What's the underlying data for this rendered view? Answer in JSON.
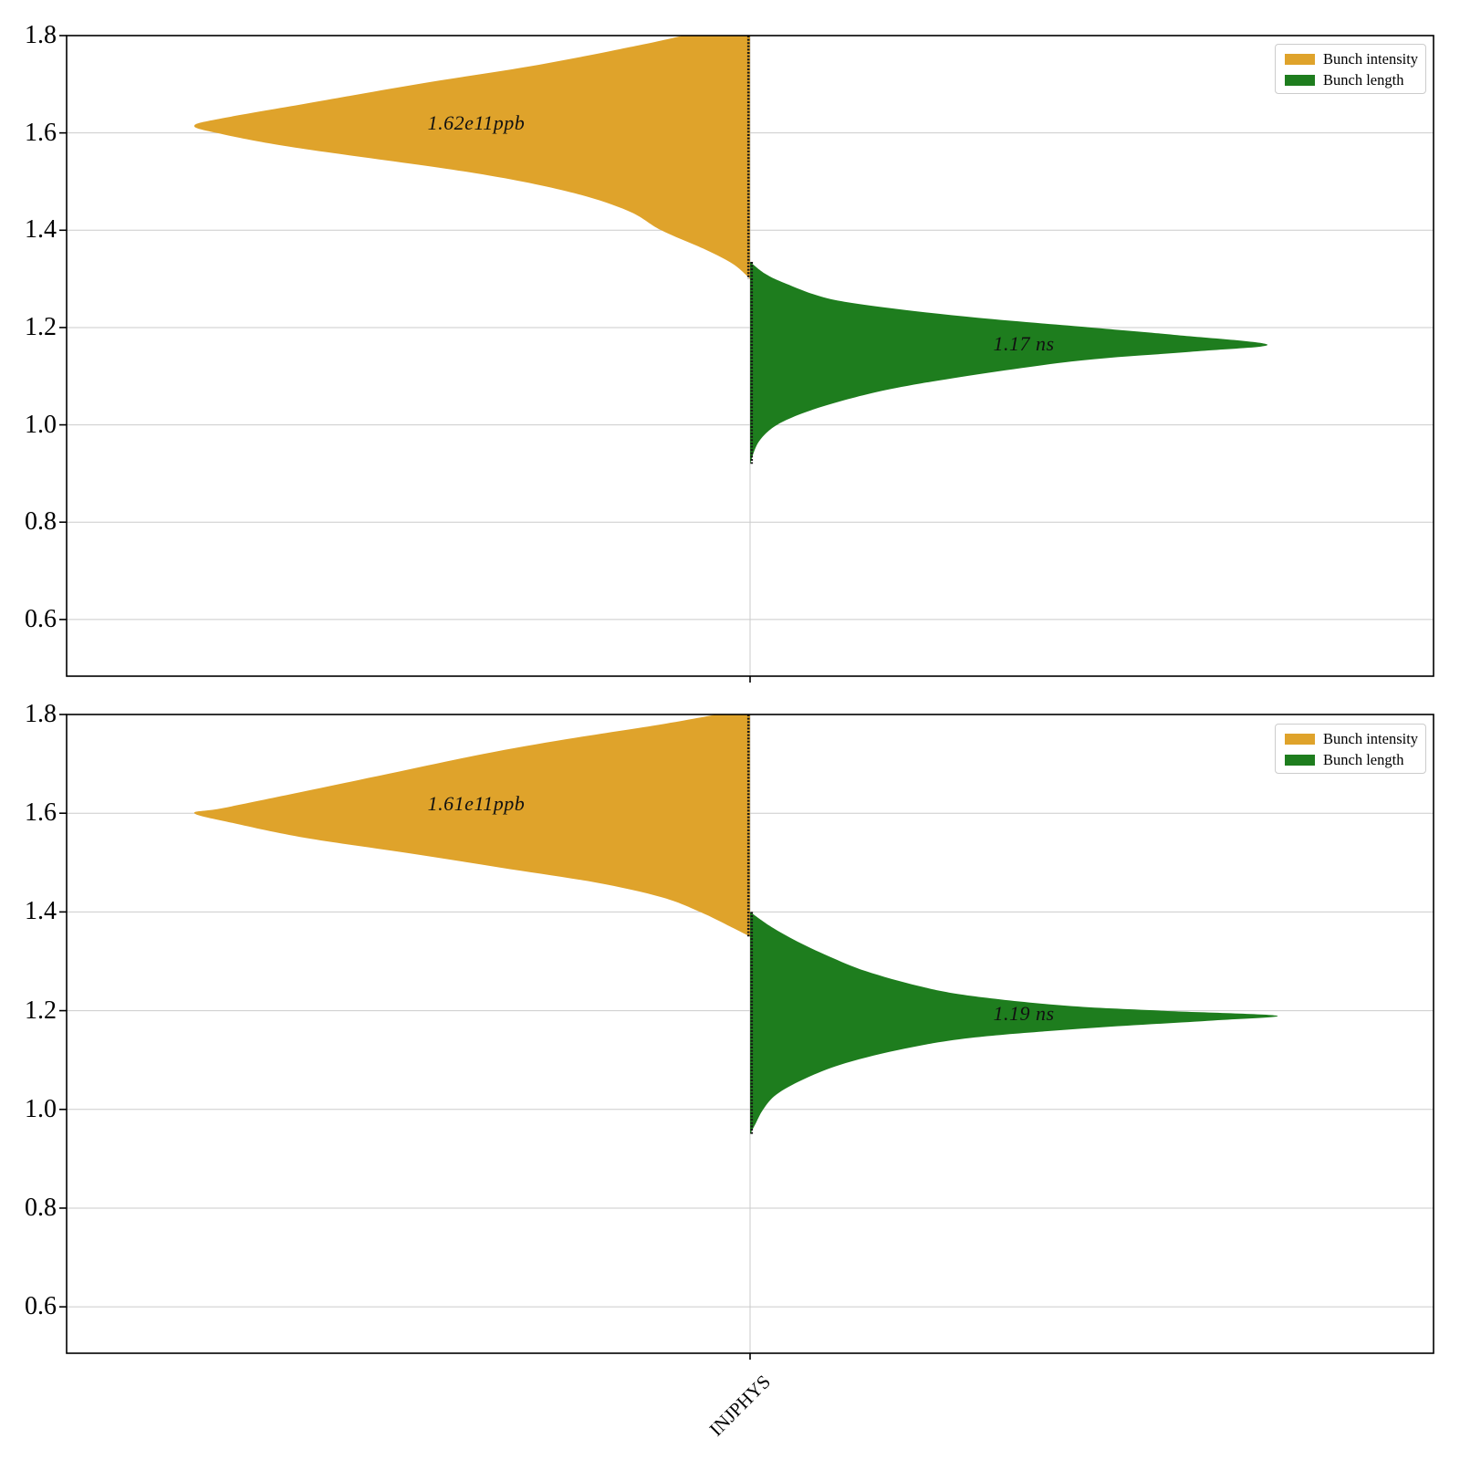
{
  "figure": {
    "background": "#ffffff"
  },
  "legend": {
    "position": "upper right",
    "items": [
      {
        "label": "Bunch intensity",
        "color": "#DFA32B"
      },
      {
        "label": "Bunch length",
        "color": "#1E7D1E"
      }
    ]
  },
  "x_axis": {
    "categories": [
      "INJPHYS"
    ]
  },
  "chart_data": [
    {
      "type": "violin",
      "panel": "top",
      "categories": [
        "INJPHYS"
      ],
      "ylim": [
        0.4835,
        1.8
      ],
      "yticks": [
        0.6,
        0.8,
        1.0,
        1.2,
        1.4,
        1.6,
        1.8
      ],
      "grid": "horizontal + category line",
      "legend_position": "upper right",
      "series": [
        {
          "name": "Bunch intensity",
          "side": "left",
          "color": "#DFA32B",
          "annotation": "1.62e11ppb",
          "mean": 1.62,
          "units": "1e11 ppb",
          "peak_value": 1.615,
          "profile": [
            [
              1.8,
              0.12
            ],
            [
              1.78,
              0.2
            ],
            [
              1.74,
              0.38
            ],
            [
              1.7,
              0.6
            ],
            [
              1.66,
              0.8
            ],
            [
              1.63,
              0.95
            ],
            [
              1.615,
              1.0
            ],
            [
              1.6,
              0.96
            ],
            [
              1.57,
              0.82
            ],
            [
              1.52,
              0.51
            ],
            [
              1.48,
              0.33
            ],
            [
              1.44,
              0.22
            ],
            [
              1.4,
              0.16
            ],
            [
              1.36,
              0.08
            ],
            [
              1.33,
              0.03
            ],
            [
              1.3,
              0.0
            ]
          ]
        },
        {
          "name": "Bunch length",
          "side": "right",
          "color": "#1E7D1E",
          "annotation": "1.17 ns",
          "mean": 1.17,
          "units": "ns",
          "peak_value": 1.165,
          "profile": [
            [
              1.335,
              0.0
            ],
            [
              1.31,
              0.03
            ],
            [
              1.29,
              0.07
            ],
            [
              1.26,
              0.15
            ],
            [
              1.24,
              0.27
            ],
            [
              1.22,
              0.44
            ],
            [
              1.2,
              0.66
            ],
            [
              1.185,
              0.82
            ],
            [
              1.165,
              1.0
            ],
            [
              1.15,
              0.85
            ],
            [
              1.13,
              0.62
            ],
            [
              1.085,
              0.33
            ],
            [
              1.05,
              0.18
            ],
            [
              1.01,
              0.07
            ],
            [
              0.97,
              0.02
            ],
            [
              0.92,
              0.0
            ]
          ]
        }
      ]
    },
    {
      "type": "violin",
      "panel": "bottom",
      "categories": [
        "INJPHYS"
      ],
      "ylim": [
        0.506,
        1.8
      ],
      "yticks": [
        0.6,
        0.8,
        1.0,
        1.2,
        1.4,
        1.6,
        1.8
      ],
      "grid": "horizontal + category line",
      "legend_position": "upper right",
      "series": [
        {
          "name": "Bunch intensity",
          "side": "left",
          "color": "#DFA32B",
          "annotation": "1.61e11ppb",
          "mean": 1.61,
          "units": "1e11 ppb",
          "peak_value": 1.6,
          "profile": [
            [
              1.8,
              0.06
            ],
            [
              1.78,
              0.16
            ],
            [
              1.75,
              0.33
            ],
            [
              1.72,
              0.48
            ],
            [
              1.68,
              0.65
            ],
            [
              1.64,
              0.82
            ],
            [
              1.61,
              0.95
            ],
            [
              1.6,
              1.0
            ],
            [
              1.58,
              0.93
            ],
            [
              1.55,
              0.8
            ],
            [
              1.52,
              0.62
            ],
            [
              1.49,
              0.45
            ],
            [
              1.46,
              0.28
            ],
            [
              1.43,
              0.16
            ],
            [
              1.4,
              0.09
            ],
            [
              1.37,
              0.035
            ],
            [
              1.35,
              0.0
            ]
          ]
        },
        {
          "name": "Bunch length",
          "side": "right",
          "color": "#1E7D1E",
          "annotation": "1.19 ns",
          "mean": 1.19,
          "units": "ns",
          "peak_value": 1.19,
          "profile": [
            [
              1.4,
              0.0
            ],
            [
              1.37,
              0.04
            ],
            [
              1.34,
              0.09
            ],
            [
              1.31,
              0.15
            ],
            [
              1.28,
              0.22
            ],
            [
              1.25,
              0.32
            ],
            [
              1.23,
              0.42
            ],
            [
              1.21,
              0.6
            ],
            [
              1.2,
              0.78
            ],
            [
              1.19,
              1.0
            ],
            [
              1.18,
              0.88
            ],
            [
              1.165,
              0.65
            ],
            [
              1.145,
              0.42
            ],
            [
              1.12,
              0.28
            ],
            [
              1.09,
              0.17
            ],
            [
              1.06,
              0.1
            ],
            [
              1.03,
              0.05
            ],
            [
              1.0,
              0.025
            ],
            [
              0.97,
              0.01
            ],
            [
              0.95,
              0.0
            ]
          ]
        }
      ]
    }
  ]
}
